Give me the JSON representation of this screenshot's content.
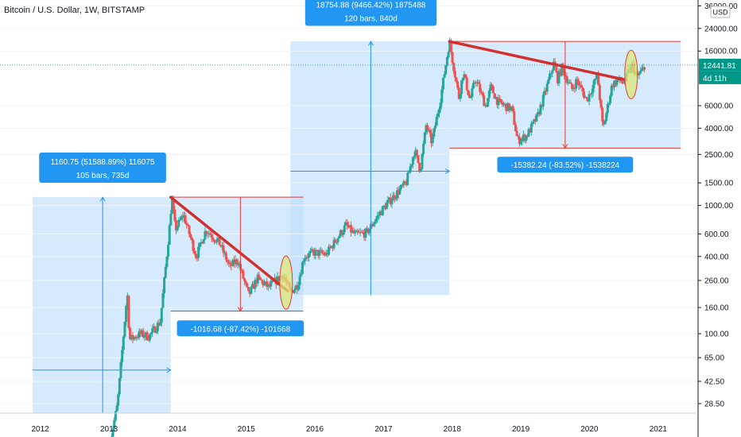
{
  "chart_data": {
    "type": "candlestick",
    "title": "Bitcoin / U.S. Dollar, 1W, BITSTAMP",
    "currency_label": "USD",
    "y_scale": "log",
    "ylim": [
      24,
      40000
    ],
    "xlim": [
      "2011-06-01",
      "2021-08-01"
    ],
    "x_ticks": [
      "2012",
      "2013",
      "2014",
      "2015",
      "2016",
      "2017",
      "2018",
      "2019",
      "2020",
      "2021"
    ],
    "y_ticks": [
      28.5,
      42.5,
      65,
      100,
      160,
      260,
      400,
      600,
      1000,
      1500,
      2500,
      4000,
      6000,
      16000,
      24000,
      36000
    ],
    "y_tick_labels": [
      "28.50",
      "42.50",
      "65.00",
      "100.00",
      "160.00",
      "260.00",
      "400.00",
      "600.00",
      "1000.00",
      "1500.00",
      "2500.00",
      "4000.00",
      "6000.00",
      "16000.00",
      "24000.00",
      "36000.00"
    ],
    "current_price": 12441.81,
    "current_price_label": "12441.81",
    "countdown_label": "4d 11h",
    "price_path": [
      [
        "2013-01-01",
        13
      ],
      [
        "2013-02-15",
        28
      ],
      [
        "2013-04-08",
        210
      ],
      [
        "2013-04-20",
        90
      ],
      [
        "2013-06-15",
        100
      ],
      [
        "2013-08-01",
        95
      ],
      [
        "2013-10-01",
        125
      ],
      [
        "2013-11-20",
        700
      ],
      [
        "2013-12-01",
        1150
      ],
      [
        "2013-12-20",
        650
      ],
      [
        "2014-02-01",
        850
      ],
      [
        "2014-04-10",
        400
      ],
      [
        "2014-06-01",
        650
      ],
      [
        "2014-08-15",
        500
      ],
      [
        "2014-10-05",
        330
      ],
      [
        "2014-11-15",
        380
      ],
      [
        "2015-01-14",
        200
      ],
      [
        "2015-03-01",
        270
      ],
      [
        "2015-05-01",
        230
      ],
      [
        "2015-07-15",
        290
      ],
      [
        "2015-08-24",
        210
      ],
      [
        "2015-10-01",
        240
      ],
      [
        "2015-11-05",
        400
      ],
      [
        "2016-01-01",
        430
      ],
      [
        "2016-03-01",
        415
      ],
      [
        "2016-06-15",
        700
      ],
      [
        "2016-08-01",
        590
      ],
      [
        "2016-10-01",
        610
      ],
      [
        "2017-01-01",
        960
      ],
      [
        "2017-03-01",
        1200
      ],
      [
        "2017-05-01",
        1500
      ],
      [
        "2017-06-15",
        2700
      ],
      [
        "2017-07-15",
        1900
      ],
      [
        "2017-08-15",
        4200
      ],
      [
        "2017-09-15",
        3100
      ],
      [
        "2017-11-01",
        7000
      ],
      [
        "2017-12-17",
        19000
      ],
      [
        "2018-01-01",
        14000
      ],
      [
        "2018-02-06",
        7000
      ],
      [
        "2018-03-01",
        11000
      ],
      [
        "2018-04-06",
        6600
      ],
      [
        "2018-05-05",
        9800
      ],
      [
        "2018-06-29",
        5900
      ],
      [
        "2018-07-25",
        8400
      ],
      [
        "2018-09-01",
        6400
      ],
      [
        "2018-11-15",
        5600
      ],
      [
        "2018-12-15",
        3200
      ],
      [
        "2019-02-01",
        3500
      ],
      [
        "2019-04-01",
        5000
      ],
      [
        "2019-05-15",
        8000
      ],
      [
        "2019-06-26",
        13000
      ],
      [
        "2019-07-15",
        9600
      ],
      [
        "2019-08-07",
        12000
      ],
      [
        "2019-09-30",
        8000
      ],
      [
        "2019-10-26",
        9500
      ],
      [
        "2019-12-18",
        6600
      ],
      [
        "2020-02-13",
        10400
      ],
      [
        "2020-03-13",
        3900
      ],
      [
        "2020-05-01",
        8800
      ],
      [
        "2020-06-01",
        9500
      ],
      [
        "2020-07-01",
        9100
      ],
      [
        "2020-08-17",
        12400
      ],
      [
        "2020-09-08",
        10000
      ],
      [
        "2020-10-12",
        11500
      ],
      [
        "2020-10-24",
        12900
      ]
    ],
    "zones": [
      {
        "from": "2011-11-21",
        "to": "2013-11-25",
        "low": 24,
        "high": 1160
      },
      {
        "from": "2013-11-25",
        "to": "2015-11-01",
        "low": 150,
        "high": 1160
      },
      {
        "from": "2015-08-24",
        "to": "2017-12-17",
        "low": 200,
        "high": 19000
      },
      {
        "from": "2017-12-17",
        "to": "2021-05-01",
        "low": 2800,
        "high": 19000
      }
    ],
    "horizontal_levels": [
      {
        "from": "2013-11-25",
        "to": "2015-11-01",
        "value": 1160
      },
      {
        "from": "2013-11-25",
        "to": "2015-11-01",
        "value": 150
      },
      {
        "from": "2017-12-17",
        "to": "2021-05-01",
        "value": 19000
      },
      {
        "from": "2017-12-17",
        "to": "2021-05-01",
        "value": 2800
      }
    ],
    "trend_lines": [
      {
        "from": [
          "2013-11-25",
          1160
        ],
        "to": [
          "2015-08-10",
          215
        ]
      },
      {
        "from": [
          "2017-12-17",
          19000
        ],
        "to": [
          "2020-07-15",
          9500
        ]
      }
    ],
    "highlight_ellipses": [
      {
        "center": [
          "2015-08-01",
          250
        ],
        "range_low": 165,
        "range_high": 430
      },
      {
        "center": [
          "2020-08-10",
          10500
        ],
        "range_low": 6900,
        "range_high": 16500
      }
    ],
    "vertical_arrows": [
      {
        "at": "2012-11-28",
        "from": 24,
        "to": 1160
      },
      {
        "at": "2014-12-01",
        "from": 1160,
        "to": 150
      },
      {
        "at": "2016-10-25",
        "from": 200,
        "to": 19000
      },
      {
        "at": "2019-08-25",
        "from": 19000,
        "to": 2800
      }
    ],
    "horizontal_arrows": [
      {
        "from": "2011-11-21",
        "to": "2013-11-25",
        "value": 52
      },
      {
        "from": "2015-08-24",
        "to": "2017-12-17",
        "value": 1850
      }
    ],
    "annotations": [
      {
        "line1": "1160.75 (51588.89%) 116075",
        "line2": "105 bars, 735d",
        "anchor": [
          "2012-11-28",
          1970
        ]
      },
      {
        "line1": "-1016.68 (-87.42%) -101668",
        "line2": "",
        "anchor": [
          "2014-12-01",
          110
        ]
      },
      {
        "line1": "18754.88 (9466.42%) 1875488",
        "line2": "120 bars, 840d",
        "anchor": [
          "2016-10-25",
          33000
        ]
      },
      {
        "line1": "-15382.24 (-83.52%) -1538224",
        "line2": "",
        "anchor": [
          "2019-08-25",
          2080
        ]
      }
    ],
    "colors": {
      "up": "#26a69a",
      "down": "#ef5350",
      "zone_fill": "#bbdefb",
      "zone_line": "#2196f3",
      "trend": "#d32f2f",
      "level": "#e53935",
      "ellipse_fill": "#dce775",
      "ellipse_stroke": "#e53935",
      "label_bg": "#2196f3",
      "label_text": "#ffffff",
      "price_tag": "#009688",
      "dotted_line": "#26a69a"
    }
  }
}
